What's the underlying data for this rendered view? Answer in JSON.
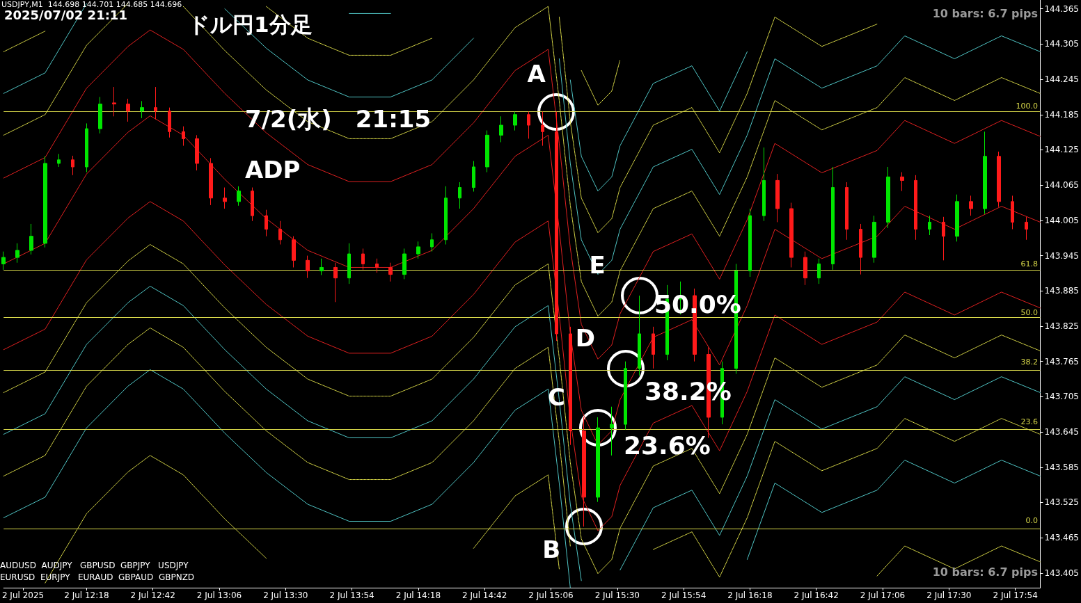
{
  "chart_data": {
    "type": "candlestick",
    "title": "ドル円1分足",
    "annotations": [
      "USDJPY,M1  144.698 144.701 144.685 144.696",
      "2025/07/02 21:11",
      "7/2(水)　21:15",
      "ADP",
      "50.0%",
      "38.2%",
      "23.6%",
      "10 bars: 6.7 pips",
      "10 bars: 6.7 pips",
      "AUDUSD  AUDJPY   GBPUSD  GBPJPY   USDJPY",
      "EURUSD  EURJPY   EURAUD  GBPAUD  GBPNZD",
      "100.0",
      "61.8",
      "50.0",
      "38.2",
      "23.6",
      "0.0",
      {
        "text": "A",
        "x": "2025-07-02T15:08",
        "y": 144.19
      },
      {
        "text": "B",
        "x": "2025-07-02T15:18",
        "y": 143.484
      },
      {
        "text": "C",
        "x": "2025-07-02T15:23",
        "y": 143.652
      },
      {
        "text": "D",
        "x": "2025-07-02T15:33",
        "y": 143.753
      },
      {
        "text": "E",
        "x": "2025-07-02T15:38",
        "y": 143.877
      }
    ],
    "xlim": [
      "2025-07-02T11:48",
      "2025-07-02T18:03"
    ],
    "xticks": [
      {
        "value": "2025-07-02T11:55",
        "label": "2 Jul 2025"
      },
      {
        "value": "2025-07-02T12:18",
        "label": "2 Jul 12:18"
      },
      {
        "value": "2025-07-02T12:42",
        "label": "2 Jul 12:42"
      },
      {
        "value": "2025-07-02T13:06",
        "label": "2 Jul 13:06"
      },
      {
        "value": "2025-07-02T13:30",
        "label": "2 Jul 13:30"
      },
      {
        "value": "2025-07-02T13:54",
        "label": "2 Jul 13:54"
      },
      {
        "value": "2025-07-02T14:18",
        "label": "2 Jul 14:18"
      },
      {
        "value": "2025-07-02T14:42",
        "label": "2 Jul 14:42"
      },
      {
        "value": "2025-07-02T15:06",
        "label": "2 Jul 15:06"
      },
      {
        "value": "2025-07-02T15:30",
        "label": "2 Jul 15:30"
      },
      {
        "value": "2025-07-02T15:54",
        "label": "2 Jul 15:54"
      },
      {
        "value": "2025-07-02T16:18",
        "label": "2 Jul 16:18"
      },
      {
        "value": "2025-07-02T16:42",
        "label": "2 Jul 16:42"
      },
      {
        "value": "2025-07-02T17:06",
        "label": "2 Jul 17:06"
      },
      {
        "value": "2025-07-02T17:30",
        "label": "2 Jul 17:30"
      },
      {
        "value": "2025-07-02T17:54",
        "label": "2 Jul 17:54"
      }
    ],
    "ylim": [
      143.38,
      144.38
    ],
    "yticks": [
      143.405,
      143.465,
      143.525,
      143.585,
      143.645,
      143.705,
      143.765,
      143.825,
      143.885,
      143.945,
      144.005,
      144.065,
      144.125,
      144.185,
      144.245,
      144.305,
      144.365
    ],
    "marker": "none",
    "ref_lines": [
      {
        "axis": "y",
        "value": 144.19,
        "color": "#d8d84a"
      },
      {
        "axis": "y",
        "value": 143.921,
        "color": "#d8d84a"
      },
      {
        "axis": "y",
        "value": 143.838,
        "color": "#d8d84a"
      },
      {
        "axis": "y",
        "value": 143.754,
        "color": "#d8d84a"
      },
      {
        "axis": "y",
        "value": 143.651,
        "color": "#d8d84a"
      },
      {
        "axis": "y",
        "value": 143.484,
        "color": "#d8d84a"
      }
    ],
    "x": [
      "2025-07-02T11:48",
      "2025-07-02T12:03",
      "2025-07-02T12:18",
      "2025-07-02T12:33",
      "2025-07-02T12:41",
      "2025-07-02T12:53",
      "2025-07-02T13:08",
      "2025-07-02T13:23",
      "2025-07-02T13:38",
      "2025-07-02T13:53",
      "2025-07-02T14:08",
      "2025-07-02T14:23",
      "2025-07-02T14:38",
      "2025-07-02T14:53",
      "2025-07-02T15:05",
      "2025-07-02T15:09",
      "2025-07-02T15:13",
      "2025-07-02T15:17",
      "2025-07-02T15:23",
      "2025-07-02T15:28",
      "2025-07-02T15:31",
      "2025-07-02T15:43",
      "2025-07-02T15:57",
      "2025-07-02T16:07",
      "2025-07-02T16:17",
      "2025-07-02T16:27",
      "2025-07-02T16:44",
      "2025-07-02T17:04",
      "2025-07-02T17:14",
      "2025-07-02T17:32",
      "2025-07-02T17:49",
      "2025-07-02T18:03"
    ],
    "series": [
      {
        "type": "line",
        "color": "#e02020",
        "line_style": "solid",
        "values": [
          143.931,
          143.966,
          144.084,
          144.155,
          144.183,
          144.15,
          144.075,
          144.008,
          143.954,
          143.925,
          143.925,
          143.954,
          144.025,
          144.114,
          144.15,
          143.99,
          143.812,
          143.682,
          143.623,
          143.647,
          143.7,
          143.806,
          143.836,
          143.759,
          143.86,
          143.99,
          143.94,
          143.978,
          144.029,
          143.99,
          144.029,
          144.002
        ]
      },
      {
        "type": "line",
        "color": "#e02020",
        "line_style": "solid",
        "values": [
          144.077,
          144.112,
          144.23,
          144.301,
          144.329,
          144.296,
          144.221,
          144.154,
          144.1,
          144.071,
          144.071,
          144.1,
          144.171,
          144.26,
          144.296,
          144.136,
          143.958,
          143.828,
          143.769,
          143.793,
          143.846,
          143.952,
          143.982,
          143.905,
          144.006,
          144.136,
          144.086,
          144.124,
          144.175,
          144.136,
          144.175,
          144.148
        ]
      },
      {
        "type": "line",
        "color": "#e02020",
        "line_style": "solid",
        "values": [
          143.785,
          143.82,
          143.938,
          144.009,
          144.037,
          144.004,
          143.929,
          143.862,
          143.808,
          143.779,
          143.779,
          143.808,
          143.879,
          143.968,
          144.004,
          143.844,
          143.666,
          143.536,
          143.477,
          143.501,
          143.554,
          143.66,
          143.69,
          143.613,
          143.714,
          143.844,
          143.794,
          143.832,
          143.883,
          143.844,
          143.883,
          143.856
        ]
      },
      {
        "type": "line",
        "color": "#e6e64c",
        "line_style": "dotted",
        "values": [
          144.15,
          144.185,
          144.303,
          144.374,
          null,
          144.369,
          144.294,
          144.227,
          144.173,
          144.144,
          144.144,
          144.173,
          144.244,
          144.333,
          144.369,
          144.209,
          144.031,
          143.901,
          143.842,
          143.866,
          143.919,
          144.025,
          144.055,
          143.978,
          144.079,
          144.209,
          144.159,
          144.197,
          144.248,
          144.209,
          144.248,
          144.221
        ]
      },
      {
        "type": "line",
        "color": "#e6e64c",
        "line_style": "dotted",
        "values": [
          143.712,
          143.747,
          143.865,
          143.936,
          143.964,
          143.931,
          143.856,
          143.789,
          143.735,
          143.706,
          143.706,
          143.735,
          143.806,
          143.895,
          143.931,
          143.771,
          143.593,
          143.463,
          143.404,
          143.428,
          143.481,
          143.587,
          143.617,
          143.54,
          143.641,
          143.771,
          143.721,
          143.759,
          143.81,
          143.771,
          143.81,
          143.783
        ]
      },
      {
        "type": "line",
        "color": "#4fc4c4",
        "line_style": "solid",
        "values": [
          144.221,
          144.256,
          144.374,
          null,
          null,
          null,
          144.365,
          144.298,
          144.244,
          144.215,
          144.215,
          144.244,
          144.315,
          null,
          null,
          144.28,
          144.102,
          143.972,
          143.913,
          143.937,
          143.99,
          144.096,
          144.126,
          144.049,
          144.15,
          144.28,
          144.23,
          144.268,
          144.319,
          144.28,
          144.319,
          144.292
        ]
      },
      {
        "type": "line",
        "color": "#4fc4c4",
        "line_style": "solid",
        "values": [
          143.641,
          143.676,
          143.794,
          143.865,
          143.893,
          143.86,
          143.785,
          143.718,
          143.664,
          143.635,
          143.635,
          143.664,
          143.735,
          143.824,
          143.86,
          143.7,
          143.522,
          143.392,
          null,
          null,
          143.41,
          143.516,
          143.546,
          143.469,
          143.57,
          143.7,
          143.65,
          143.688,
          143.739,
          143.7,
          143.739,
          143.712
        ]
      },
      {
        "type": "line",
        "color": "#e6e64c",
        "line_style": "dotted",
        "values": [
          144.292,
          144.327,
          null,
          null,
          null,
          null,
          null,
          144.369,
          144.315,
          144.286,
          144.286,
          144.315,
          null,
          null,
          null,
          144.351,
          144.173,
          144.043,
          143.984,
          144.008,
          144.061,
          144.167,
          144.197,
          144.12,
          144.221,
          144.351,
          144.301,
          144.339,
          null,
          null,
          null,
          null
        ]
      },
      {
        "type": "line",
        "color": "#e6e64c",
        "line_style": "dotted",
        "values": [
          143.57,
          143.605,
          143.723,
          143.794,
          143.822,
          143.789,
          143.714,
          143.647,
          143.593,
          143.564,
          143.564,
          143.593,
          143.664,
          143.753,
          143.789,
          143.629,
          143.451,
          null,
          null,
          null,
          null,
          143.445,
          143.475,
          143.398,
          143.499,
          143.629,
          143.579,
          143.617,
          143.668,
          143.629,
          143.668,
          143.641
        ]
      },
      {
        "type": "line",
        "color": "#4fc4c4",
        "line_style": "solid",
        "values": [
          null,
          null,
          null,
          null,
          null,
          null,
          null,
          null,
          null,
          144.357,
          144.357,
          null,
          null,
          null,
          null,
          null,
          144.244,
          144.114,
          144.055,
          144.079,
          144.132,
          144.238,
          144.268,
          144.191,
          144.292,
          null,
          null,
          null,
          null,
          null,
          null,
          null
        ]
      },
      {
        "type": "line",
        "color": "#4fc4c4",
        "line_style": "solid",
        "values": [
          143.499,
          143.534,
          143.652,
          143.723,
          143.751,
          143.718,
          143.643,
          143.576,
          143.522,
          143.493,
          143.493,
          143.522,
          143.593,
          143.682,
          143.718,
          143.558,
          143.38,
          null,
          null,
          null,
          null,
          null,
          null,
          null,
          143.428,
          143.558,
          143.508,
          143.546,
          143.597,
          143.558,
          143.597,
          143.57
        ]
      },
      {
        "type": "line",
        "color": "#e6e64c",
        "line_style": "dotted",
        "values": [
          null,
          null,
          null,
          null,
          null,
          null,
          null,
          null,
          null,
          null,
          null,
          null,
          null,
          null,
          null,
          null,
          null,
          144.26,
          144.201,
          144.225,
          144.278,
          null,
          null,
          null,
          null,
          null,
          null,
          null,
          null,
          null,
          null,
          null
        ]
      },
      {
        "type": "line",
        "color": "#e6e64c",
        "line_style": "dotted",
        "values": [
          null,
          143.388,
          143.506,
          143.577,
          143.605,
          143.572,
          143.497,
          143.43,
          null,
          null,
          null,
          null,
          143.447,
          143.536,
          143.572,
          143.412,
          null,
          null,
          null,
          null,
          null,
          null,
          null,
          null,
          null,
          null,
          null,
          143.4,
          143.451,
          143.412,
          143.451,
          143.424
        ]
      },
      {
        "x": [
          "2025-07-02T11:48",
          "2025-07-02T11:53",
          "2025-07-02T11:58",
          "2025-07-02T12:03",
          "2025-07-02T12:08",
          "2025-07-02T12:13",
          "2025-07-02T12:18",
          "2025-07-02T12:23",
          "2025-07-02T12:28",
          "2025-07-02T12:33",
          "2025-07-02T12:38",
          "2025-07-02T12:43",
          "2025-07-02T12:48",
          "2025-07-02T12:53",
          "2025-07-02T12:58",
          "2025-07-02T13:03",
          "2025-07-02T13:08",
          "2025-07-02T13:13",
          "2025-07-02T13:18",
          "2025-07-02T13:23",
          "2025-07-02T13:28",
          "2025-07-02T13:33",
          "2025-07-02T13:38",
          "2025-07-02T13:43",
          "2025-07-02T13:48",
          "2025-07-02T13:53",
          "2025-07-02T13:58",
          "2025-07-02T14:03",
          "2025-07-02T14:08",
          "2025-07-02T14:13",
          "2025-07-02T14:18",
          "2025-07-02T14:23",
          "2025-07-02T14:28",
          "2025-07-02T14:33",
          "2025-07-02T14:38",
          "2025-07-02T14:43",
          "2025-07-02T14:48",
          "2025-07-02T14:53",
          "2025-07-02T14:58",
          "2025-07-02T15:03",
          "2025-07-02T15:08",
          "2025-07-02T15:13",
          "2025-07-02T15:18",
          "2025-07-02T15:23",
          "2025-07-02T15:28",
          "2025-07-02T15:33",
          "2025-07-02T15:38",
          "2025-07-02T15:43",
          "2025-07-02T15:48",
          "2025-07-02T15:53",
          "2025-07-02T15:58",
          "2025-07-02T16:03",
          "2025-07-02T16:08",
          "2025-07-02T16:13",
          "2025-07-02T16:18",
          "2025-07-02T16:23",
          "2025-07-02T16:28",
          "2025-07-02T16:33",
          "2025-07-02T16:38",
          "2025-07-02T16:43",
          "2025-07-02T16:48",
          "2025-07-02T16:53",
          "2025-07-02T16:58",
          "2025-07-02T17:03",
          "2025-07-02T17:08",
          "2025-07-02T17:13",
          "2025-07-02T17:18",
          "2025-07-02T17:23",
          "2025-07-02T17:28",
          "2025-07-02T17:33",
          "2025-07-02T17:38",
          "2025-07-02T17:43",
          "2025-07-02T17:48",
          "2025-07-02T17:53",
          "2025-07-02T17:58"
        ],
        "ohlc": [
          [
            143.931,
            143.952,
            143.921,
            143.942
          ],
          [
            143.942,
            143.966,
            143.933,
            143.954
          ],
          [
            143.954,
            143.999,
            143.947,
            143.978
          ],
          [
            143.966,
            144.114,
            143.959,
            144.102
          ],
          [
            144.102,
            144.118,
            144.096,
            144.108
          ],
          [
            144.108,
            144.115,
            144.082,
            144.096
          ],
          [
            144.096,
            144.17,
            144.087,
            144.161
          ],
          [
            144.161,
            144.215,
            144.153,
            144.203
          ],
          [
            144.205,
            144.232,
            144.182,
            144.203
          ],
          [
            144.203,
            144.212,
            144.173,
            144.191
          ],
          [
            144.191,
            144.208,
            144.179,
            144.197
          ],
          [
            144.197,
            144.232,
            144.177,
            144.191
          ],
          [
            144.191,
            144.197,
            144.146,
            144.156
          ],
          [
            144.156,
            144.165,
            144.132,
            144.144
          ],
          [
            144.144,
            144.15,
            144.09,
            144.102
          ],
          [
            144.102,
            144.111,
            144.031,
            144.043
          ],
          [
            144.043,
            144.061,
            144.025,
            144.037
          ],
          [
            144.037,
            144.063,
            144.03,
            144.055
          ],
          [
            144.055,
            144.061,
            144.004,
            144.013
          ],
          [
            144.013,
            144.023,
            143.978,
            143.99
          ],
          [
            143.99,
            144.004,
            143.964,
            143.972
          ],
          [
            143.972,
            143.978,
            143.925,
            143.937
          ],
          [
            143.937,
            143.945,
            143.907,
            143.919
          ],
          [
            143.919,
            143.94,
            143.912,
            143.925
          ],
          [
            143.925,
            143.933,
            143.866,
            143.907
          ],
          [
            143.907,
            143.966,
            143.897,
            143.948
          ],
          [
            143.948,
            143.957,
            143.921,
            143.931
          ],
          [
            143.931,
            143.94,
            143.916,
            143.925
          ],
          [
            143.925,
            143.933,
            143.901,
            143.913
          ],
          [
            143.913,
            143.957,
            143.905,
            143.948
          ],
          [
            143.948,
            143.969,
            143.94,
            143.96
          ],
          [
            143.96,
            143.983,
            143.952,
            143.972
          ],
          [
            143.972,
            144.063,
            143.964,
            144.043
          ],
          [
            144.043,
            144.07,
            144.025,
            144.061
          ],
          [
            144.061,
            144.106,
            144.054,
            144.096
          ],
          [
            144.096,
            144.158,
            144.087,
            144.15
          ],
          [
            144.15,
            144.182,
            144.138,
            144.167
          ],
          [
            144.167,
            144.19,
            144.158,
            144.185
          ],
          [
            144.185,
            144.19,
            144.144,
            144.167
          ],
          [
            144.167,
            144.19,
            144.132,
            144.156
          ],
          [
            144.156,
            144.19,
            143.8,
            143.812
          ],
          [
            143.812,
            143.824,
            143.623,
            143.647
          ],
          [
            143.647,
            143.67,
            143.484,
            143.534
          ],
          [
            143.534,
            143.67,
            143.526,
            143.652
          ],
          [
            143.652,
            143.688,
            143.605,
            143.658
          ],
          [
            143.658,
            143.765,
            143.649,
            143.753
          ],
          [
            143.753,
            143.877,
            143.741,
            143.812
          ],
          [
            143.812,
            143.824,
            143.753,
            143.777
          ],
          [
            143.777,
            143.895,
            143.767,
            143.871
          ],
          [
            143.871,
            143.901,
            143.845,
            143.877
          ],
          [
            143.877,
            143.889,
            143.765,
            143.777
          ],
          [
            143.777,
            143.789,
            143.635,
            143.67
          ],
          [
            143.67,
            143.765,
            143.658,
            143.753
          ],
          [
            143.753,
            143.931,
            143.744,
            143.919
          ],
          [
            143.919,
            144.025,
            143.909,
            144.013
          ],
          [
            144.013,
            144.129,
            144.004,
            144.073
          ],
          [
            144.073,
            144.084,
            144.002,
            144.025
          ],
          [
            144.025,
            144.035,
            143.925,
            143.942
          ],
          [
            143.942,
            143.952,
            143.895,
            143.907
          ],
          [
            143.907,
            143.94,
            143.897,
            143.931
          ],
          [
            143.931,
            144.096,
            143.921,
            144.061
          ],
          [
            144.061,
            144.07,
            143.972,
            143.99
          ],
          [
            143.99,
            143.999,
            143.913,
            143.942
          ],
          [
            143.942,
            144.013,
            143.933,
            144.002
          ],
          [
            144.002,
            144.096,
            143.992,
            144.079
          ],
          [
            144.079,
            144.087,
            144.055,
            144.073
          ],
          [
            144.073,
            144.082,
            143.972,
            143.99
          ],
          [
            143.99,
            144.013,
            143.98,
            144.002
          ],
          [
            144.002,
            144.011,
            143.937,
            143.978
          ],
          [
            143.978,
            144.049,
            143.969,
            144.037
          ],
          [
            144.037,
            144.047,
            144.013,
            144.025
          ],
          [
            144.025,
            144.156,
            144.016,
            144.114
          ],
          [
            144.114,
            144.122,
            144.028,
            144.037
          ],
          [
            144.037,
            144.047,
            143.99,
            144.002
          ],
          [
            144.002,
            144.011,
            143.972,
            143.99
          ]
        ],
        "colors": [
          "#00e600",
          "#00e600",
          "#00e600",
          "#00e600",
          "#00e600",
          "#ff1a1a",
          "#00e600",
          "#00e600",
          "#ff1a1a",
          "#ff1a1a",
          "#00e600",
          "#ff1a1a",
          "#ff1a1a",
          "#ff1a1a",
          "#ff1a1a",
          "#ff1a1a",
          "#ff1a1a",
          "#00e600",
          "#ff1a1a",
          "#ff1a1a",
          "#ff1a1a",
          "#ff1a1a",
          "#ff1a1a",
          "#00e600",
          "#ff1a1a",
          "#00e600",
          "#ff1a1a",
          "#ff1a1a",
          "#ff1a1a",
          "#00e600",
          "#00e600",
          "#00e600",
          "#00e600",
          "#00e600",
          "#00e600",
          "#00e600",
          "#00e600",
          "#00e600",
          "#ff1a1a",
          "#ff1a1a",
          "#ff1a1a",
          "#ff1a1a",
          "#ff1a1a",
          "#00e600",
          "#00e600",
          "#00e600",
          "#00e600",
          "#ff1a1a",
          "#00e600",
          "#00e600",
          "#ff1a1a",
          "#ff1a1a",
          "#00e600",
          "#00e600",
          "#00e600",
          "#00e600",
          "#ff1a1a",
          "#ff1a1a",
          "#ff1a1a",
          "#00e600",
          "#00e600",
          "#ff1a1a",
          "#ff1a1a",
          "#00e600",
          "#00e600",
          "#ff1a1a",
          "#ff1a1a",
          "#00e600",
          "#ff1a1a",
          "#00e600",
          "#ff1a1a",
          "#00e600",
          "#ff1a1a",
          "#ff1a1a",
          "#ff1a1a"
        ]
      }
    ]
  }
}
